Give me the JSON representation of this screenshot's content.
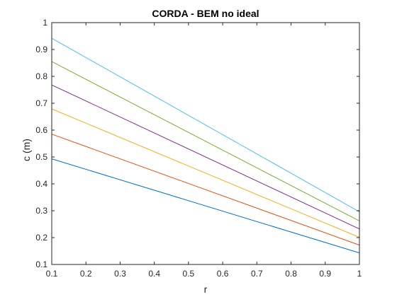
{
  "chart_data": {
    "type": "line",
    "title": "CORDA - BEM no ideal",
    "xlabel": "r",
    "ylabel": "c (m)",
    "xlim": [
      0.1,
      1
    ],
    "ylim": [
      0.1,
      1
    ],
    "xticks": [
      "0.1",
      "0.2",
      "0.3",
      "0.4",
      "0.5",
      "0.6",
      "0.7",
      "0.8",
      "0.9",
      "1"
    ],
    "yticks": [
      "0.1",
      "0.2",
      "0.3",
      "0.4",
      "0.5",
      "0.6",
      "0.7",
      "0.8",
      "0.9",
      "1"
    ],
    "grid": false,
    "x": [
      0.1,
      1
    ],
    "series": [
      {
        "values": [
          0.493,
          0.143
        ],
        "color": "#0072BD"
      },
      {
        "values": [
          0.585,
          0.172
        ],
        "color": "#D95319"
      },
      {
        "values": [
          0.679,
          0.201
        ],
        "color": "#EDB120"
      },
      {
        "values": [
          0.768,
          0.232
        ],
        "color": "#7E2F8E"
      },
      {
        "values": [
          0.855,
          0.262
        ],
        "color": "#77AC30"
      },
      {
        "values": [
          0.942,
          0.296
        ],
        "color": "#4DBEEE"
      }
    ]
  }
}
